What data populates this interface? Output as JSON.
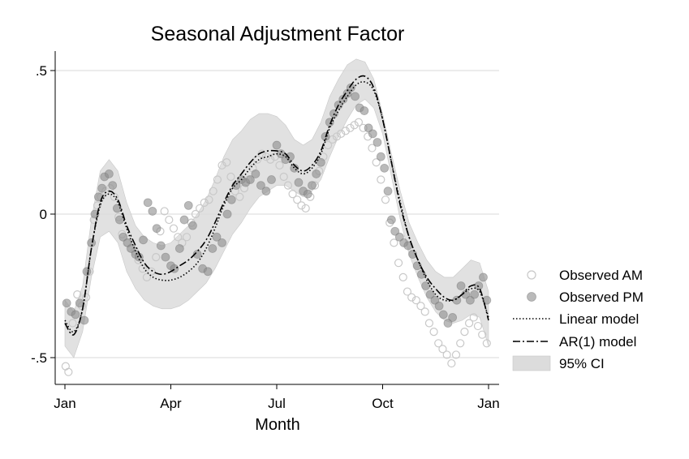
{
  "chart_data": {
    "type": "scatter",
    "title": "Seasonal Adjustment Factor",
    "xlabel": "Month",
    "ylabel": "",
    "xlim": [
      0,
      12
    ],
    "ylim": [
      -0.6,
      0.6
    ],
    "x_ticks": [
      {
        "value": 0,
        "label": "Jan"
      },
      {
        "value": 3,
        "label": "Apr"
      },
      {
        "value": 6,
        "label": "Jul"
      },
      {
        "value": 9,
        "label": "Oct"
      },
      {
        "value": 12,
        "label": "Jan"
      }
    ],
    "y_ticks": [
      {
        "value": 0.5,
        "label": ".5"
      },
      {
        "value": 0,
        "label": "0"
      },
      {
        "value": -0.5,
        "label": "-.5"
      }
    ],
    "grid": "horizontal",
    "legend_position": "right",
    "legend": [
      "Observed AM",
      "Observed PM",
      "Linear model",
      "AR(1) model",
      "95% CI"
    ],
    "colors": {
      "am_marker": "#c8c8c8",
      "pm_marker": "#8c8c8c",
      "ci_fill": "#dcdcdc",
      "grid": "#d9d9d9",
      "line": "#000000"
    },
    "series": [
      {
        "name": "Linear model",
        "style": "dotted",
        "x": [
          0.0,
          0.25,
          0.5,
          0.75,
          1.0,
          1.25,
          1.5,
          1.75,
          2.0,
          2.25,
          2.5,
          2.75,
          3.0,
          3.25,
          3.5,
          3.75,
          4.0,
          4.25,
          4.5,
          4.75,
          5.0,
          5.25,
          5.5,
          5.75,
          6.0,
          6.25,
          6.5,
          6.75,
          7.0,
          7.25,
          7.5,
          7.75,
          8.0,
          8.25,
          8.5,
          8.75,
          9.0,
          9.25,
          9.5,
          9.75,
          10.0,
          10.25,
          10.5,
          10.75,
          11.0,
          11.25,
          11.5,
          11.75,
          12.0
        ],
        "y": [
          -0.37,
          -0.41,
          -0.33,
          -0.12,
          0.03,
          0.07,
          0.04,
          -0.05,
          -0.13,
          -0.19,
          -0.22,
          -0.23,
          -0.23,
          -0.22,
          -0.2,
          -0.17,
          -0.12,
          -0.05,
          0.03,
          0.09,
          0.12,
          0.16,
          0.19,
          0.2,
          0.21,
          0.2,
          0.16,
          0.14,
          0.16,
          0.21,
          0.3,
          0.36,
          0.41,
          0.45,
          0.46,
          0.43,
          0.33,
          0.18,
          0.04,
          -0.08,
          -0.16,
          -0.23,
          -0.28,
          -0.3,
          -0.3,
          -0.28,
          -0.26,
          -0.27,
          -0.36
        ]
      },
      {
        "name": "AR(1) model",
        "style": "dashdot",
        "x": [
          0.0,
          0.25,
          0.5,
          0.75,
          1.0,
          1.25,
          1.5,
          1.75,
          2.0,
          2.25,
          2.5,
          2.75,
          3.0,
          3.25,
          3.5,
          3.75,
          4.0,
          4.25,
          4.5,
          4.75,
          5.0,
          5.25,
          5.5,
          5.75,
          6.0,
          6.25,
          6.5,
          6.75,
          7.0,
          7.25,
          7.5,
          7.75,
          8.0,
          8.25,
          8.5,
          8.75,
          9.0,
          9.25,
          9.5,
          9.75,
          10.0,
          10.25,
          10.5,
          10.75,
          11.0,
          11.25,
          11.5,
          11.75,
          12.0
        ],
        "y": [
          -0.38,
          -0.42,
          -0.33,
          -0.12,
          0.04,
          0.08,
          0.05,
          -0.04,
          -0.11,
          -0.17,
          -0.2,
          -0.21,
          -0.2,
          -0.18,
          -0.16,
          -0.13,
          -0.09,
          -0.03,
          0.04,
          0.1,
          0.14,
          0.18,
          0.21,
          0.22,
          0.22,
          0.21,
          0.17,
          0.15,
          0.17,
          0.22,
          0.31,
          0.38,
          0.43,
          0.47,
          0.48,
          0.44,
          0.33,
          0.18,
          0.03,
          -0.08,
          -0.16,
          -0.22,
          -0.26,
          -0.29,
          -0.3,
          -0.28,
          -0.25,
          -0.26,
          -0.37
        ]
      }
    ],
    "ci_band": {
      "name": "95% CI",
      "x": [
        0.0,
        0.25,
        0.5,
        0.75,
        1.0,
        1.25,
        1.5,
        1.75,
        2.0,
        2.25,
        2.5,
        2.75,
        3.0,
        3.25,
        3.5,
        3.75,
        4.0,
        4.25,
        4.5,
        4.75,
        5.0,
        5.25,
        5.5,
        5.75,
        6.0,
        6.25,
        6.5,
        6.75,
        7.0,
        7.25,
        7.5,
        7.75,
        8.0,
        8.25,
        8.5,
        8.75,
        9.0,
        9.25,
        9.5,
        9.75,
        10.0,
        10.25,
        10.5,
        10.75,
        11.0,
        11.25,
        11.5,
        11.75,
        12.0
      ],
      "upper": [
        -0.3,
        -0.34,
        -0.25,
        -0.02,
        0.15,
        0.19,
        0.15,
        0.04,
        -0.04,
        -0.08,
        -0.1,
        -0.11,
        -0.1,
        -0.07,
        -0.04,
        0.0,
        0.05,
        0.12,
        0.2,
        0.26,
        0.29,
        0.33,
        0.35,
        0.35,
        0.34,
        0.31,
        0.26,
        0.24,
        0.26,
        0.32,
        0.41,
        0.47,
        0.52,
        0.54,
        0.53,
        0.47,
        0.35,
        0.21,
        0.08,
        -0.03,
        -0.1,
        -0.16,
        -0.2,
        -0.22,
        -0.22,
        -0.19,
        -0.16,
        -0.17,
        -0.27
      ],
      "lower": [
        -0.46,
        -0.5,
        -0.41,
        -0.22,
        -0.08,
        -0.06,
        -0.1,
        -0.2,
        -0.26,
        -0.3,
        -0.32,
        -0.33,
        -0.33,
        -0.32,
        -0.3,
        -0.27,
        -0.24,
        -0.19,
        -0.13,
        -0.07,
        -0.03,
        0.02,
        0.06,
        0.08,
        0.1,
        0.1,
        0.08,
        0.06,
        0.08,
        0.12,
        0.2,
        0.27,
        0.33,
        0.38,
        0.4,
        0.37,
        0.28,
        0.13,
        -0.02,
        -0.14,
        -0.22,
        -0.29,
        -0.34,
        -0.37,
        -0.38,
        -0.37,
        -0.35,
        -0.36,
        -0.46
      ]
    },
    "observed_pm": {
      "name": "Observed PM",
      "x": [
        0.05,
        0.18,
        0.3,
        0.42,
        0.55,
        0.62,
        0.75,
        0.85,
        0.95,
        1.05,
        1.12,
        1.25,
        1.35,
        1.48,
        1.55,
        1.65,
        1.78,
        1.88,
        2.0,
        2.1,
        2.22,
        2.35,
        2.48,
        2.6,
        2.72,
        2.85,
        3.0,
        3.1,
        3.25,
        3.38,
        3.5,
        3.62,
        3.75,
        3.9,
        4.05,
        4.18,
        4.3,
        4.45,
        4.6,
        4.72,
        4.85,
        5.0,
        5.12,
        5.25,
        5.4,
        5.55,
        5.7,
        5.85,
        6.0,
        6.12,
        6.25,
        6.38,
        6.5,
        6.62,
        6.75,
        6.88,
        7.0,
        7.12,
        7.25,
        7.38,
        7.5,
        7.62,
        7.75,
        7.88,
        8.0,
        8.1,
        8.22,
        8.35,
        8.48,
        8.6,
        8.72,
        8.85,
        8.95,
        9.05,
        9.15,
        9.25,
        9.35,
        9.48,
        9.6,
        9.72,
        9.85,
        9.98,
        10.1,
        10.22,
        10.35,
        10.48,
        10.6,
        10.72,
        10.85,
        10.98,
        11.1,
        11.22,
        11.35,
        11.48,
        11.6,
        11.72,
        11.85,
        11.95
      ],
      "y": [
        -0.31,
        -0.34,
        -0.35,
        -0.31,
        -0.37,
        -0.2,
        -0.1,
        0.0,
        0.06,
        0.09,
        0.13,
        0.14,
        0.1,
        0.02,
        -0.02,
        -0.08,
        -0.1,
        -0.12,
        -0.14,
        -0.15,
        -0.09,
        0.04,
        0.01,
        -0.05,
        -0.11,
        -0.15,
        -0.18,
        -0.19,
        -0.12,
        -0.02,
        0.03,
        -0.04,
        -0.14,
        -0.19,
        -0.2,
        -0.12,
        -0.08,
        -0.1,
        0.0,
        0.05,
        0.1,
        0.12,
        0.11,
        0.12,
        0.14,
        0.1,
        0.08,
        0.12,
        0.24,
        0.21,
        0.19,
        0.2,
        0.16,
        0.11,
        0.08,
        0.07,
        0.1,
        0.14,
        0.18,
        0.27,
        0.32,
        0.35,
        0.38,
        0.4,
        0.42,
        0.44,
        0.41,
        0.37,
        0.36,
        0.3,
        0.28,
        0.25,
        0.2,
        0.16,
        0.08,
        -0.02,
        -0.06,
        -0.08,
        -0.1,
        -0.11,
        -0.14,
        -0.18,
        -0.21,
        -0.25,
        -0.28,
        -0.3,
        -0.32,
        -0.35,
        -0.38,
        -0.36,
        -0.3,
        -0.25,
        -0.28,
        -0.3,
        -0.28,
        -0.25,
        -0.22,
        -0.3
      ]
    },
    "observed_am": {
      "name": "Observed AM",
      "x": [
        0.02,
        0.1,
        0.22,
        0.35,
        0.48,
        0.6,
        0.7,
        0.82,
        0.92,
        1.02,
        1.15,
        1.28,
        1.4,
        1.52,
        1.62,
        1.75,
        1.85,
        1.98,
        2.08,
        2.2,
        2.32,
        2.45,
        2.58,
        2.7,
        2.82,
        2.95,
        3.08,
        3.2,
        3.32,
        3.45,
        3.58,
        3.7,
        3.82,
        3.95,
        4.08,
        4.2,
        4.32,
        4.45,
        4.58,
        4.7,
        4.82,
        4.95,
        5.08,
        5.2,
        5.32,
        5.45,
        5.58,
        5.7,
        5.82,
        5.95,
        6.08,
        6.2,
        6.32,
        6.45,
        6.58,
        6.7,
        6.82,
        6.95,
        7.08,
        7.2,
        7.32,
        7.45,
        7.58,
        7.7,
        7.82,
        7.95,
        8.08,
        8.2,
        8.32,
        8.45,
        8.58,
        8.7,
        8.82,
        8.95,
        9.08,
        9.2,
        9.32,
        9.45,
        9.58,
        9.7,
        9.82,
        9.95,
        10.08,
        10.2,
        10.32,
        10.45,
        10.58,
        10.7,
        10.82,
        10.95,
        11.08,
        11.2,
        11.32,
        11.45,
        11.58,
        11.7,
        11.82,
        11.95
      ],
      "y": [
        -0.53,
        -0.55,
        -0.38,
        -0.28,
        -0.32,
        -0.29,
        -0.2,
        -0.02,
        0.03,
        0.06,
        0.08,
        0.09,
        0.06,
        -0.01,
        -0.07,
        -0.1,
        -0.12,
        -0.13,
        -0.16,
        -0.19,
        -0.22,
        -0.2,
        -0.15,
        -0.06,
        0.01,
        -0.02,
        -0.05,
        -0.08,
        -0.1,
        -0.08,
        -0.03,
        0.0,
        0.02,
        0.04,
        0.05,
        0.08,
        0.12,
        0.17,
        0.18,
        0.13,
        0.08,
        0.06,
        0.09,
        0.12,
        0.16,
        0.19,
        0.21,
        0.2,
        0.19,
        0.2,
        0.17,
        0.13,
        0.1,
        0.07,
        0.05,
        0.03,
        0.02,
        0.06,
        0.1,
        0.15,
        0.2,
        0.24,
        0.26,
        0.27,
        0.28,
        0.29,
        0.3,
        0.31,
        0.32,
        0.3,
        0.27,
        0.23,
        0.18,
        0.12,
        0.05,
        -0.03,
        -0.1,
        -0.17,
        -0.22,
        -0.27,
        -0.29,
        -0.3,
        -0.32,
        -0.34,
        -0.38,
        -0.41,
        -0.45,
        -0.47,
        -0.49,
        -0.52,
        -0.49,
        -0.45,
        -0.41,
        -0.38,
        -0.36,
        -0.39,
        -0.42,
        -0.45
      ]
    }
  }
}
